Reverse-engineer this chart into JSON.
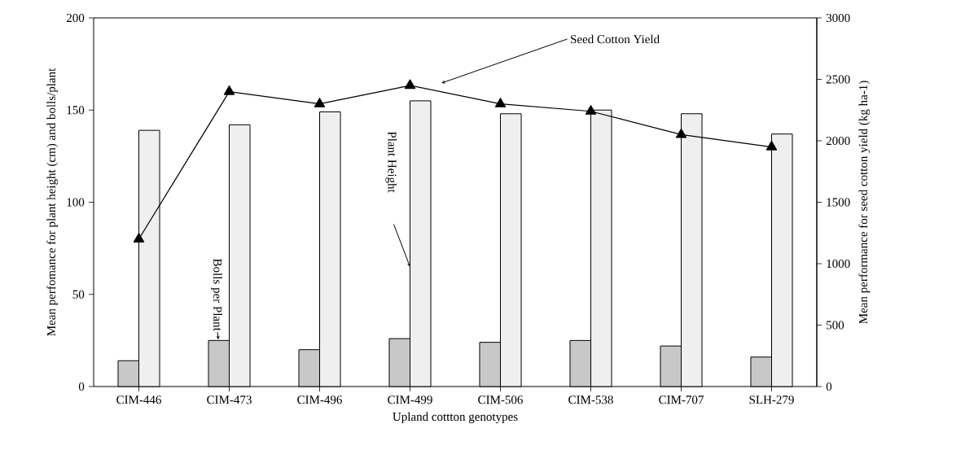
{
  "chart_data": {
    "type": "bar",
    "categories": [
      "CIM-446",
      "CIM-473",
      "CIM-496",
      "CIM-499",
      "CIM-506",
      "CIM-538",
      "CIM-707",
      "SLH-279"
    ],
    "series": [
      {
        "name": "Bolls per Plant",
        "color": "#c8c8c8",
        "values": [
          14,
          25,
          20,
          26,
          24,
          25,
          22,
          16
        ]
      },
      {
        "name": "Plant Height",
        "color": "#efefef",
        "values": [
          139,
          142,
          149,
          155,
          148,
          150,
          148,
          137
        ]
      },
      {
        "name": "Seed Cotton Yield",
        "type": "line",
        "axis": "y2",
        "color": "#000000",
        "marker": "triangle",
        "values": [
          1200,
          2400,
          2300,
          2450,
          2300,
          2240,
          2050,
          1950
        ]
      }
    ],
    "xlabel": "Upland cottton genotypes",
    "ylabel": "Mean perfomance for plant height (cm) and bolls/plant",
    "y2label": "Mean performance for seed cotton yield (kg ha-1)",
    "ylim": [
      0,
      200
    ],
    "yticks": [
      0,
      50,
      100,
      150,
      200
    ],
    "y2lim": [
      0,
      3000
    ],
    "y2ticks": [
      0,
      500,
      1000,
      1500,
      2000,
      2500,
      3000
    ]
  }
}
